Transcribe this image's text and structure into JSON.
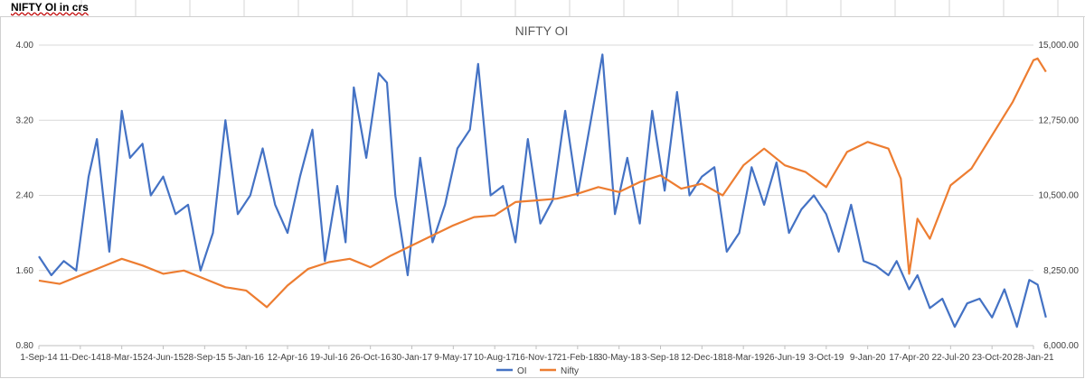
{
  "sheet": {
    "label": "NIFTY OI in crs"
  },
  "chart_data": {
    "type": "line",
    "title": "NIFTY OI",
    "x_tick_labels": [
      "1-Sep-14",
      "11-Dec-14",
      "18-Mar-15",
      "24-Jun-15",
      "28-Sep-15",
      "5-Jan-16",
      "12-Apr-16",
      "19-Jul-16",
      "26-Oct-16",
      "30-Jan-17",
      "9-May-17",
      "10-Aug-17",
      "16-Nov-17",
      "21-Feb-18",
      "30-May-18",
      "3-Sep-18",
      "12-Dec-18",
      "18-Mar-19",
      "26-Jun-19",
      "3-Oct-19",
      "9-Jan-20",
      "17-Apr-20",
      "22-Jul-20",
      "23-Oct-20",
      "28-Jan-21"
    ],
    "y_left": {
      "min": 0.8,
      "max": 4.0,
      "ticks": [
        "0.80",
        "1.60",
        "2.40",
        "3.20",
        "4.00"
      ]
    },
    "y_right": {
      "min": 6000,
      "max": 15000,
      "ticks": [
        "6,000.00",
        "8,250.00",
        "10,500.00",
        "12,750.00",
        "15,000.00"
      ]
    },
    "grid": true,
    "legend_position": "bottom",
    "series": [
      {
        "name": "OI",
        "axis": "left",
        "color": "#4472C4",
        "x_index": [
          0,
          0.3,
          0.6,
          0.9,
          1.2,
          1.4,
          1.7,
          2.0,
          2.2,
          2.5,
          2.7,
          3.0,
          3.3,
          3.6,
          3.9,
          4.2,
          4.5,
          4.8,
          5.1,
          5.4,
          5.7,
          6.0,
          6.3,
          6.6,
          6.9,
          7.2,
          7.4,
          7.6,
          7.9,
          8.2,
          8.4,
          8.6,
          8.9,
          9.2,
          9.5,
          9.8,
          10.1,
          10.4,
          10.6,
          10.9,
          11.2,
          11.5,
          11.8,
          12.1,
          12.4,
          12.7,
          13.0,
          13.3,
          13.6,
          13.9,
          14.2,
          14.5,
          14.8,
          15.1,
          15.4,
          15.7,
          16.0,
          16.3,
          16.6,
          16.9,
          17.2,
          17.5,
          17.8,
          18.1,
          18.4,
          18.7,
          19.0,
          19.3,
          19.6,
          19.9,
          20.2,
          20.5,
          20.7,
          21.0,
          21.2,
          21.5,
          21.8,
          22.1,
          22.4,
          22.7,
          23.0,
          23.3,
          23.6,
          23.9,
          24.1,
          24.3
        ],
        "values": [
          1.75,
          1.55,
          1.7,
          1.6,
          2.6,
          3.0,
          1.8,
          3.3,
          2.8,
          2.95,
          2.4,
          2.6,
          2.2,
          2.3,
          1.6,
          2.0,
          3.2,
          2.2,
          2.4,
          2.9,
          2.3,
          2.0,
          2.6,
          3.1,
          1.7,
          2.5,
          1.9,
          3.55,
          2.8,
          3.7,
          3.6,
          2.4,
          1.55,
          2.8,
          1.9,
          2.3,
          2.9,
          3.1,
          3.8,
          2.4,
          2.5,
          1.9,
          3.0,
          2.1,
          2.35,
          3.3,
          2.4,
          3.15,
          3.9,
          2.2,
          2.8,
          2.1,
          3.3,
          2.45,
          3.5,
          2.4,
          2.6,
          2.7,
          1.8,
          2.0,
          2.7,
          2.3,
          2.75,
          2.0,
          2.25,
          2.4,
          2.2,
          1.8,
          2.3,
          1.7,
          1.65,
          1.55,
          1.7,
          1.4,
          1.55,
          1.2,
          1.3,
          1.0,
          1.25,
          1.3,
          1.1,
          1.4,
          1.0,
          1.5,
          1.45,
          1.1
        ]
      },
      {
        "name": "Nifty",
        "axis": "right",
        "color": "#ED7D31",
        "x_index": [
          0,
          0.5,
          1.0,
          1.5,
          2.0,
          2.5,
          3.0,
          3.5,
          4.0,
          4.5,
          5.0,
          5.5,
          6.0,
          6.5,
          7.0,
          7.5,
          8.0,
          8.5,
          9.0,
          9.5,
          10.0,
          10.5,
          11.0,
          11.5,
          12.0,
          12.5,
          13.0,
          13.5,
          14.0,
          14.5,
          15.0,
          15.5,
          16.0,
          16.5,
          17.0,
          17.5,
          18.0,
          18.5,
          19.0,
          19.5,
          20.0,
          20.5,
          20.8,
          21.0,
          21.2,
          21.5,
          22.0,
          22.5,
          23.0,
          23.5,
          24.0,
          24.1,
          24.3
        ],
        "values": [
          7950,
          7850,
          8100,
          8350,
          8600,
          8400,
          8150,
          8250,
          8000,
          7750,
          7650,
          7150,
          7800,
          8300,
          8500,
          8600,
          8350,
          8700,
          9000,
          9300,
          9600,
          9850,
          9900,
          10300,
          10350,
          10400,
          10550,
          10750,
          10600,
          10900,
          11100,
          10700,
          10850,
          10500,
          11400,
          11900,
          11400,
          11200,
          10750,
          11800,
          12100,
          11900,
          11000,
          8150,
          9800,
          9200,
          10800,
          11300,
          12300,
          13300,
          14550,
          14600,
          14200
        ]
      }
    ]
  }
}
